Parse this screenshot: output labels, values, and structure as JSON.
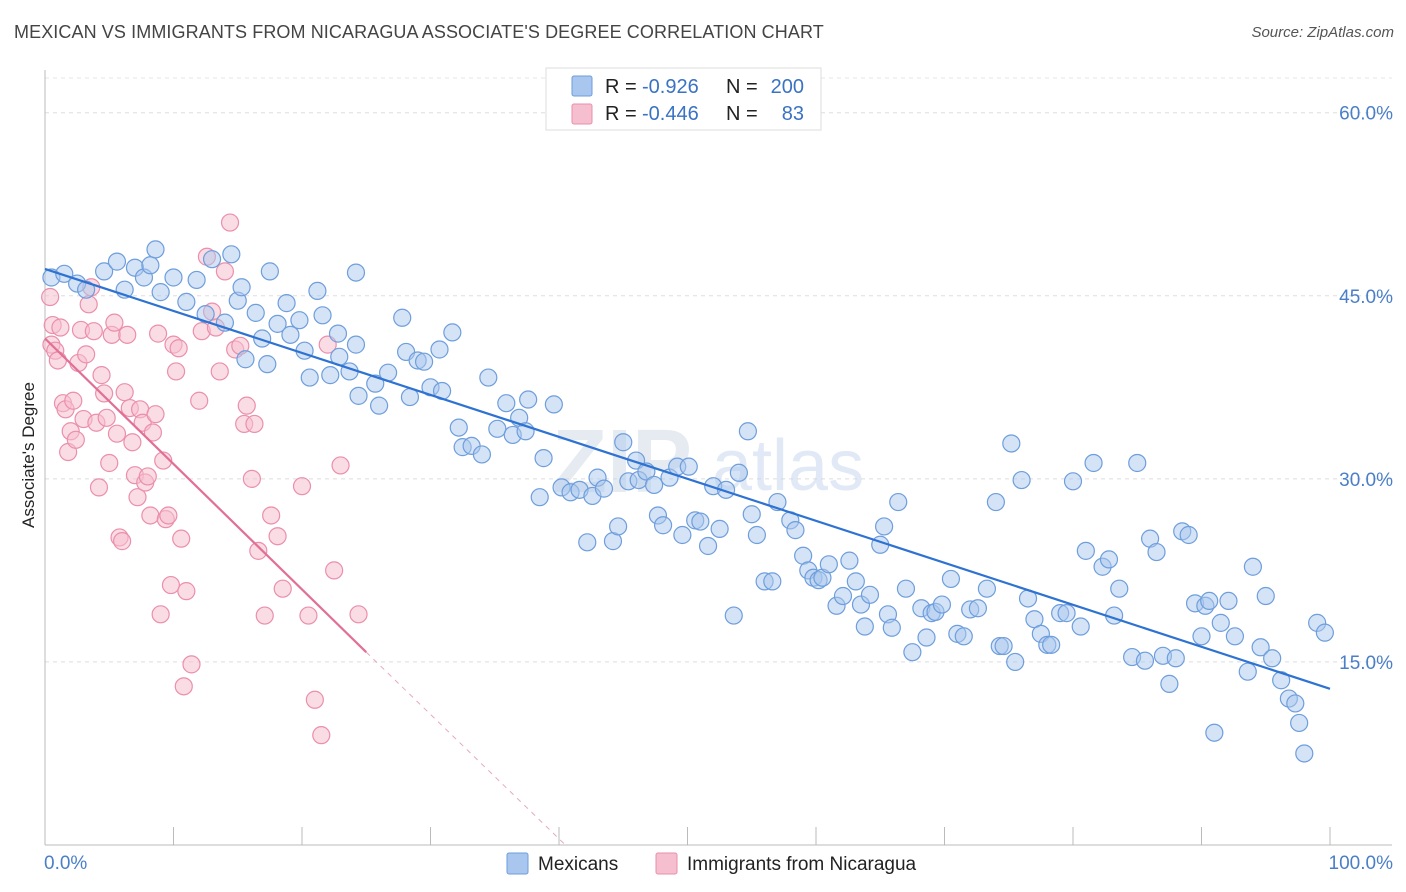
{
  "header": {
    "title": "MEXICAN VS IMMIGRANTS FROM NICARAGUA ASSOCIATE'S DEGREE CORRELATION CHART",
    "source": "Source: ZipAtlas.com"
  },
  "watermark": {
    "zip": "ZIP",
    "atlas": "atlas"
  },
  "colors": {
    "blue_fill": "#a9c7ee",
    "blue_stroke": "#6e9edc",
    "blue_line": "#2e72d2",
    "pink_fill": "#f6bfd0",
    "pink_stroke": "#eb8fab",
    "pink_line": "#e26f95",
    "accent_text": "#3a72c4"
  },
  "legend": {
    "rows": [
      {
        "r_label": "R =",
        "r_value": "-0.926",
        "n_label": "N =",
        "n_value": "200"
      },
      {
        "r_label": "R =",
        "r_value": "-0.446",
        "n_label": "N =",
        "n_value": "83"
      }
    ]
  },
  "bottom_legend": [
    "Mexicans",
    "Immigrants from Nicaragua"
  ],
  "chart_data": {
    "type": "scatter",
    "title": "MEXICAN VS IMMIGRANTS FROM NICARAGUA ASSOCIATE'S DEGREE CORRELATION CHART",
    "xlabel": "",
    "ylabel": "Associate's Degree",
    "xlim": [
      0,
      100
    ],
    "ylim": [
      0,
      63.5
    ],
    "x_tick_labels": [
      "0.0%",
      "100.0%"
    ],
    "y_ticks": [
      15,
      30,
      45,
      60
    ],
    "y_tick_labels": [
      "15.0%",
      "30.0%",
      "45.0%",
      "60.0%"
    ],
    "grid": true,
    "legend_position": "top-center",
    "series": [
      {
        "name": "Mexicans",
        "color": "#a9c7ee",
        "trend": {
          "x": [
            0,
            100
          ],
          "y": [
            47.2,
            12.8
          ]
        },
        "points": [
          [
            0.5,
            46.5
          ],
          [
            1.5,
            46.8
          ],
          [
            2.5,
            46.0
          ],
          [
            3.2,
            45.5
          ],
          [
            4.6,
            47.0
          ],
          [
            5.6,
            47.8
          ],
          [
            6.2,
            45.5
          ],
          [
            7.0,
            47.3
          ],
          [
            7.7,
            46.5
          ],
          [
            8.2,
            47.5
          ],
          [
            8.6,
            48.8
          ],
          [
            9.0,
            45.3
          ],
          [
            10.0,
            46.5
          ],
          [
            11.0,
            44.5
          ],
          [
            11.8,
            46.3
          ],
          [
            12.5,
            43.5
          ],
          [
            13.0,
            48.0
          ],
          [
            14.0,
            42.8
          ],
          [
            14.5,
            48.4
          ],
          [
            15.0,
            44.6
          ],
          [
            15.3,
            45.7
          ],
          [
            15.6,
            39.8
          ],
          [
            16.4,
            43.6
          ],
          [
            16.9,
            41.5
          ],
          [
            17.3,
            39.4
          ],
          [
            17.5,
            47.0
          ],
          [
            18.1,
            42.7
          ],
          [
            18.8,
            44.4
          ],
          [
            19.1,
            41.8
          ],
          [
            19.8,
            43.0
          ],
          [
            20.2,
            40.5
          ],
          [
            20.6,
            38.3
          ],
          [
            21.2,
            45.4
          ],
          [
            21.6,
            43.4
          ],
          [
            22.2,
            38.5
          ],
          [
            22.9,
            40.0
          ],
          [
            22.8,
            41.9
          ],
          [
            23.7,
            38.8
          ],
          [
            24.2,
            46.9
          ],
          [
            24.2,
            41.0
          ],
          [
            24.4,
            36.8
          ],
          [
            25.7,
            37.8
          ],
          [
            26.0,
            36.0
          ],
          [
            26.7,
            38.7
          ],
          [
            27.8,
            43.2
          ],
          [
            28.1,
            40.4
          ],
          [
            28.4,
            36.7
          ],
          [
            29.0,
            39.7
          ],
          [
            29.5,
            39.6
          ],
          [
            30.0,
            37.5
          ],
          [
            30.7,
            40.6
          ],
          [
            30.9,
            37.2
          ],
          [
            31.7,
            42.0
          ],
          [
            32.2,
            34.2
          ],
          [
            32.5,
            32.6
          ],
          [
            33.2,
            32.7
          ],
          [
            34.0,
            32.0
          ],
          [
            34.5,
            38.3
          ],
          [
            35.2,
            34.1
          ],
          [
            35.9,
            36.2
          ],
          [
            36.4,
            33.6
          ],
          [
            36.9,
            35.0
          ],
          [
            37.4,
            33.9
          ],
          [
            37.6,
            36.5
          ],
          [
            38.5,
            28.5
          ],
          [
            38.8,
            31.7
          ],
          [
            39.6,
            36.1
          ],
          [
            40.2,
            29.3
          ],
          [
            40.9,
            28.9
          ],
          [
            41.6,
            29.1
          ],
          [
            42.2,
            24.8
          ],
          [
            42.6,
            28.6
          ],
          [
            43.0,
            30.1
          ],
          [
            43.5,
            29.2
          ],
          [
            44.2,
            24.9
          ],
          [
            44.6,
            26.1
          ],
          [
            45.0,
            33.0
          ],
          [
            45.4,
            29.8
          ],
          [
            46.0,
            31.5
          ],
          [
            46.2,
            29.9
          ],
          [
            46.8,
            30.6
          ],
          [
            47.4,
            29.5
          ],
          [
            47.7,
            27.0
          ],
          [
            48.1,
            26.2
          ],
          [
            48.6,
            30.1
          ],
          [
            49.2,
            31.0
          ],
          [
            49.6,
            25.4
          ],
          [
            50.1,
            31.0
          ],
          [
            50.6,
            26.6
          ],
          [
            51.0,
            26.5
          ],
          [
            51.6,
            24.5
          ],
          [
            52.0,
            29.4
          ],
          [
            52.5,
            25.9
          ],
          [
            53.0,
            29.1
          ],
          [
            53.6,
            18.8
          ],
          [
            54.0,
            30.5
          ],
          [
            54.7,
            33.9
          ],
          [
            55.0,
            27.1
          ],
          [
            55.4,
            25.4
          ],
          [
            56.0,
            21.6
          ],
          [
            56.6,
            21.6
          ],
          [
            57.0,
            28.1
          ],
          [
            58.0,
            26.6
          ],
          [
            58.4,
            25.8
          ],
          [
            59.0,
            23.7
          ],
          [
            59.4,
            22.5
          ],
          [
            59.8,
            21.9
          ],
          [
            60.2,
            21.7
          ],
          [
            60.5,
            21.9
          ],
          [
            61.0,
            23.0
          ],
          [
            61.6,
            19.6
          ],
          [
            62.1,
            20.4
          ],
          [
            62.6,
            23.3
          ],
          [
            63.1,
            21.6
          ],
          [
            63.5,
            19.7
          ],
          [
            63.8,
            17.9
          ],
          [
            64.2,
            20.5
          ],
          [
            65.0,
            24.6
          ],
          [
            65.3,
            26.1
          ],
          [
            65.6,
            18.9
          ],
          [
            65.9,
            17.8
          ],
          [
            66.4,
            28.1
          ],
          [
            67.0,
            21.0
          ],
          [
            67.5,
            15.8
          ],
          [
            68.2,
            19.4
          ],
          [
            68.6,
            17.0
          ],
          [
            69.0,
            19.0
          ],
          [
            69.3,
            19.1
          ],
          [
            69.8,
            19.7
          ],
          [
            70.5,
            21.8
          ],
          [
            71.0,
            17.3
          ],
          [
            71.5,
            17.1
          ],
          [
            72.0,
            19.3
          ],
          [
            72.6,
            19.4
          ],
          [
            73.3,
            21.0
          ],
          [
            74.0,
            28.1
          ],
          [
            74.3,
            16.3
          ],
          [
            74.6,
            16.3
          ],
          [
            75.2,
            32.9
          ],
          [
            75.5,
            15.0
          ],
          [
            76.0,
            29.9
          ],
          [
            76.5,
            20.2
          ],
          [
            77.0,
            18.5
          ],
          [
            77.5,
            17.3
          ],
          [
            78.0,
            16.4
          ],
          [
            78.3,
            16.4
          ],
          [
            79.0,
            19.0
          ],
          [
            79.5,
            19.0
          ],
          [
            80.0,
            29.8
          ],
          [
            80.6,
            17.9
          ],
          [
            81.0,
            24.1
          ],
          [
            81.6,
            31.3
          ],
          [
            82.3,
            22.8
          ],
          [
            82.8,
            23.4
          ],
          [
            83.2,
            18.8
          ],
          [
            83.6,
            21.0
          ],
          [
            84.6,
            15.4
          ],
          [
            85.0,
            31.3
          ],
          [
            85.6,
            15.1
          ],
          [
            86.0,
            25.1
          ],
          [
            86.5,
            24.0
          ],
          [
            87.0,
            15.5
          ],
          [
            87.5,
            13.2
          ],
          [
            88.0,
            15.3
          ],
          [
            88.5,
            25.7
          ],
          [
            89.0,
            25.4
          ],
          [
            89.5,
            19.8
          ],
          [
            90.0,
            17.1
          ],
          [
            90.3,
            19.6
          ],
          [
            90.6,
            20.0
          ],
          [
            91.0,
            9.2
          ],
          [
            91.5,
            18.2
          ],
          [
            92.1,
            20.0
          ],
          [
            92.6,
            17.1
          ],
          [
            93.6,
            14.2
          ],
          [
            94.0,
            22.8
          ],
          [
            94.6,
            16.2
          ],
          [
            95.0,
            20.4
          ],
          [
            95.5,
            15.3
          ],
          [
            96.2,
            13.5
          ],
          [
            96.8,
            12.0
          ],
          [
            97.3,
            11.6
          ],
          [
            97.6,
            10.0
          ],
          [
            98.0,
            7.5
          ],
          [
            99.0,
            18.2
          ],
          [
            99.6,
            17.4
          ]
        ]
      },
      {
        "name": "Immigrants from Nicaragua",
        "color": "#f6bfd0",
        "trend": {
          "x": [
            0,
            25.0
          ],
          "y": [
            41.5,
            15.8
          ],
          "dashed_to": {
            "x": 40.5,
            "y": 0
          }
        },
        "points": [
          [
            0.4,
            44.9
          ],
          [
            0.6,
            42.6
          ],
          [
            0.5,
            41.0
          ],
          [
            0.8,
            40.5
          ],
          [
            1.0,
            39.7
          ],
          [
            1.2,
            42.4
          ],
          [
            1.4,
            36.2
          ],
          [
            1.6,
            35.7
          ],
          [
            1.8,
            32.2
          ],
          [
            2.0,
            33.9
          ],
          [
            2.2,
            36.4
          ],
          [
            2.4,
            33.2
          ],
          [
            2.6,
            39.5
          ],
          [
            2.8,
            42.2
          ],
          [
            3.0,
            34.9
          ],
          [
            3.2,
            40.2
          ],
          [
            3.4,
            44.3
          ],
          [
            3.6,
            45.7
          ],
          [
            3.8,
            42.1
          ],
          [
            4.0,
            34.6
          ],
          [
            4.2,
            29.3
          ],
          [
            4.4,
            38.5
          ],
          [
            4.6,
            37.0
          ],
          [
            4.8,
            35.0
          ],
          [
            5.0,
            31.3
          ],
          [
            5.2,
            41.8
          ],
          [
            5.4,
            42.8
          ],
          [
            5.6,
            33.7
          ],
          [
            5.8,
            25.2
          ],
          [
            6.0,
            24.9
          ],
          [
            6.2,
            37.1
          ],
          [
            6.4,
            41.8
          ],
          [
            6.6,
            35.8
          ],
          [
            6.8,
            33.0
          ],
          [
            7.0,
            30.3
          ],
          [
            7.2,
            28.5
          ],
          [
            7.4,
            35.7
          ],
          [
            7.6,
            34.6
          ],
          [
            7.8,
            29.7
          ],
          [
            8.0,
            30.2
          ],
          [
            8.2,
            27.0
          ],
          [
            8.4,
            33.8
          ],
          [
            8.6,
            35.3
          ],
          [
            8.8,
            41.9
          ],
          [
            9.0,
            18.9
          ],
          [
            9.2,
            31.5
          ],
          [
            9.4,
            26.7
          ],
          [
            9.6,
            27.0
          ],
          [
            9.8,
            21.3
          ],
          [
            10.0,
            41.0
          ],
          [
            10.2,
            38.8
          ],
          [
            10.4,
            40.7
          ],
          [
            10.6,
            25.1
          ],
          [
            10.8,
            13.0
          ],
          [
            11.0,
            20.8
          ],
          [
            11.4,
            14.8
          ],
          [
            12.0,
            36.4
          ],
          [
            12.2,
            42.1
          ],
          [
            12.6,
            48.2
          ],
          [
            13.0,
            43.7
          ],
          [
            13.3,
            42.4
          ],
          [
            13.6,
            38.8
          ],
          [
            14.0,
            47.0
          ],
          [
            14.4,
            51.0
          ],
          [
            14.8,
            40.6
          ],
          [
            15.2,
            40.9
          ],
          [
            15.5,
            34.5
          ],
          [
            15.7,
            36.0
          ],
          [
            16.1,
            30.0
          ],
          [
            16.3,
            34.5
          ],
          [
            16.6,
            24.1
          ],
          [
            17.1,
            18.8
          ],
          [
            17.6,
            27.0
          ],
          [
            18.1,
            25.3
          ],
          [
            18.5,
            21.0
          ],
          [
            20.0,
            29.4
          ],
          [
            20.5,
            18.8
          ],
          [
            21.0,
            11.9
          ],
          [
            21.5,
            9.0
          ],
          [
            22.0,
            41.0
          ],
          [
            22.5,
            22.5
          ],
          [
            23.0,
            31.1
          ],
          [
            24.4,
            18.9
          ]
        ]
      }
    ]
  }
}
